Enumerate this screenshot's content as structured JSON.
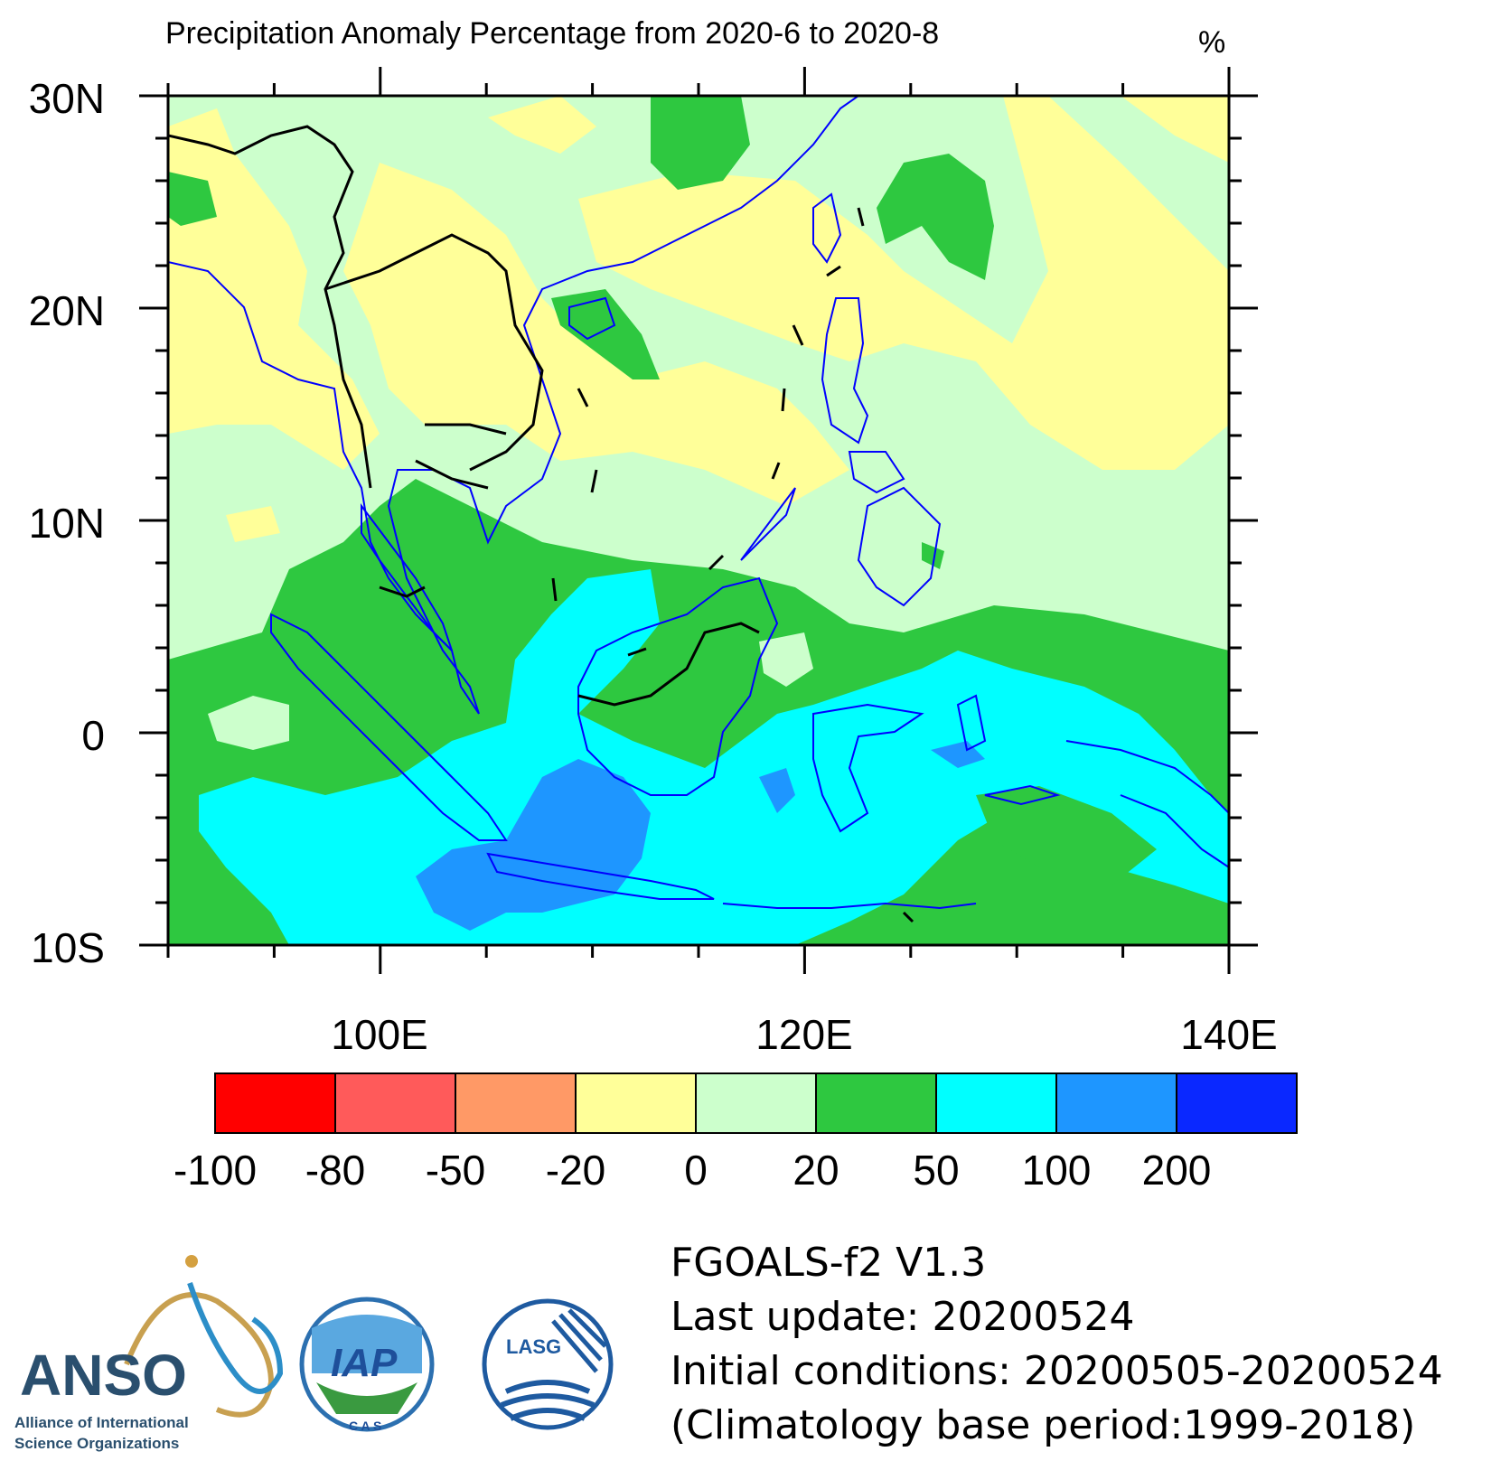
{
  "title": "Precipitation Anomaly Percentage from 2020-6 to 2020-8",
  "units": "%",
  "map": {
    "lon_range": [
      90,
      140
    ],
    "lat_range": [
      -10,
      30
    ],
    "lat_labels": [
      "30N",
      "20N",
      "10N",
      "0",
      "10S"
    ],
    "lat_values": [
      30,
      20,
      10,
      0,
      -10
    ],
    "lon_labels": [
      "100E",
      "120E",
      "140E"
    ],
    "lon_values": [
      100,
      120,
      140
    ],
    "coastline_color": "#0000ff",
    "border_color": "#000000"
  },
  "colorbar": {
    "levels": [
      "-100",
      "-80",
      "-50",
      "-20",
      "0",
      "20",
      "50",
      "100",
      "200"
    ],
    "colors": [
      "#ff0000",
      "#ff5a5a",
      "#ff9966",
      "#ffff99",
      "#ccffcc",
      "#2ec840",
      "#00ffff",
      "#1e96ff",
      "#0a28ff"
    ]
  },
  "info": {
    "model": "FGOALS-f2 V1.3",
    "last_update": "Last update: 20200524",
    "initial_conditions": "Initial conditions: 20200505-20200524",
    "climatology": "(Climatology base period:1999-2018)"
  },
  "logos": {
    "anso_name": "ANSO",
    "anso_sub1": "Alliance of International",
    "anso_sub2": "Science Organizations",
    "iap_name": "IAP",
    "iap_sub": "C A S",
    "lasg_name": "LASG"
  }
}
